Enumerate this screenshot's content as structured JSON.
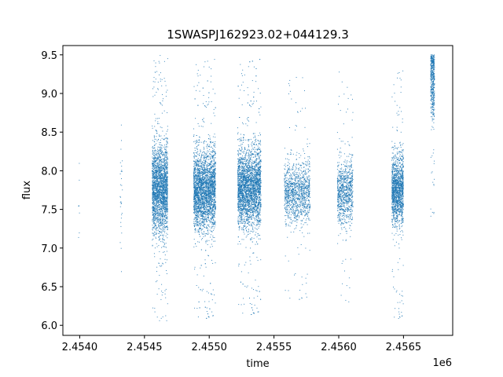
{
  "chart_data": {
    "type": "scatter",
    "title": "1SWASPJ162923.02+044129.3",
    "xlabel": "time",
    "ylabel": "flux",
    "x_offset_label": "1e6",
    "xlim": [
      2453870,
      2456880
    ],
    "ylim": [
      5.87,
      9.62
    ],
    "x_ticks": [
      2454000,
      2454500,
      2455000,
      2455500,
      2456000,
      2456500
    ],
    "x_tick_labels": [
      "2.4540",
      "2.4545",
      "2.4550",
      "2.4555",
      "2.4560",
      "2.4565"
    ],
    "y_ticks": [
      6.0,
      6.5,
      7.0,
      7.5,
      8.0,
      8.5,
      9.0,
      9.5
    ],
    "y_tick_labels": [
      "6.0",
      "6.5",
      "7.0",
      "7.5",
      "8.0",
      "8.5",
      "9.0",
      "9.5"
    ],
    "grid": false,
    "point_color": "#1f77b4",
    "series": [
      {
        "clusters": [
          {
            "x_start": 2453990,
            "x_end": 2454000,
            "y_center": 7.4,
            "y_spread": 0.5,
            "y_min": 6.6,
            "y_max": 8.2,
            "density": 8
          },
          {
            "x_start": 2454310,
            "x_end": 2454330,
            "y_center": 7.7,
            "y_spread": 0.45,
            "y_min": 6.65,
            "y_max": 8.6,
            "density": 30
          },
          {
            "x_start": 2454560,
            "x_end": 2454680,
            "y_center": 7.75,
            "y_spread": 0.28,
            "y_min": 6.05,
            "y_max": 9.5,
            "density": 2400
          },
          {
            "x_start": 2454880,
            "x_end": 2455050,
            "y_center": 7.75,
            "y_spread": 0.25,
            "y_min": 6.05,
            "y_max": 9.45,
            "density": 3200
          },
          {
            "x_start": 2455220,
            "x_end": 2455400,
            "y_center": 7.78,
            "y_spread": 0.25,
            "y_min": 6.1,
            "y_max": 9.45,
            "density": 3200
          },
          {
            "x_start": 2455580,
            "x_end": 2455780,
            "y_center": 7.72,
            "y_spread": 0.2,
            "y_min": 6.3,
            "y_max": 9.3,
            "density": 1200
          },
          {
            "x_start": 2455990,
            "x_end": 2456110,
            "y_center": 7.72,
            "y_spread": 0.2,
            "y_min": 6.15,
            "y_max": 9.35,
            "density": 900
          },
          {
            "x_start": 2456410,
            "x_end": 2456500,
            "y_center": 7.75,
            "y_spread": 0.22,
            "y_min": 6.05,
            "y_max": 9.3,
            "density": 1500
          },
          {
            "x_start": 2456710,
            "x_end": 2456740,
            "y_center": 9.2,
            "y_spread": 0.25,
            "y_min": 7.3,
            "y_max": 9.5,
            "density": 500
          }
        ]
      }
    ]
  }
}
